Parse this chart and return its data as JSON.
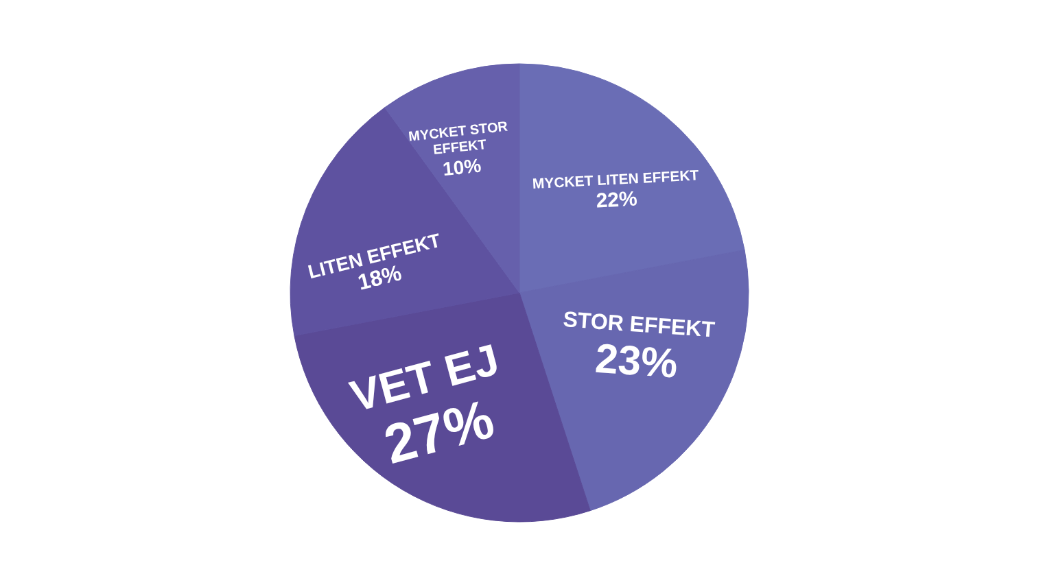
{
  "chart_data": {
    "type": "pie",
    "categories": [
      "MYCKET LITEN EFFEKT",
      "STOR EFFEKT",
      "VET EJ",
      "LITEN EFFEKT",
      "MYCKET STOR EFFEKT"
    ],
    "values": [
      22,
      23,
      27,
      18,
      10
    ],
    "colors": [
      "#6a6db5",
      "#6767b0",
      "#5a4a96",
      "#5e52a0",
      "#6660ac"
    ],
    "value_labels": [
      "22%",
      "23%",
      "27%",
      "18%",
      "10%"
    ]
  }
}
